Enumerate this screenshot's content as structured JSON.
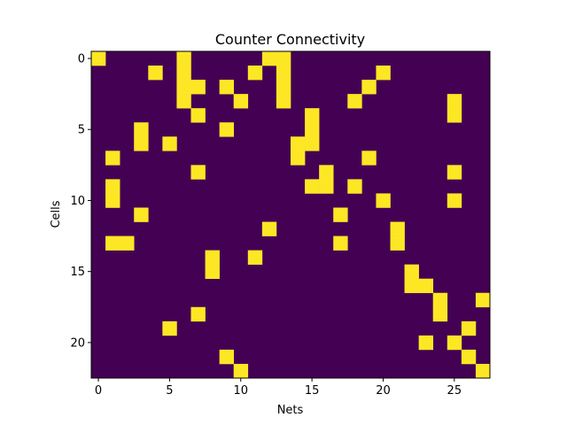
{
  "chart_data": {
    "type": "heatmap",
    "title": "Counter Connectivity",
    "xlabel": "Nets",
    "ylabel": "Cells",
    "n_rows": 23,
    "n_cols": 28,
    "xticks": [
      0,
      5,
      10,
      15,
      20,
      25
    ],
    "yticks": [
      0,
      5,
      10,
      15,
      20
    ],
    "xlim": [
      -0.5,
      27.5
    ],
    "ylim": [
      22.5,
      -0.5
    ],
    "colormap": "viridis",
    "value_range": [
      0,
      1
    ],
    "colors": {
      "off": "#440154",
      "on": "#fde725"
    },
    "grid": false,
    "legend": "none",
    "connections": [
      [
        0,
        0
      ],
      [
        0,
        6
      ],
      [
        0,
        12
      ],
      [
        0,
        13
      ],
      [
        1,
        4
      ],
      [
        1,
        6
      ],
      [
        1,
        11
      ],
      [
        1,
        13
      ],
      [
        1,
        20
      ],
      [
        2,
        6
      ],
      [
        2,
        7
      ],
      [
        2,
        9
      ],
      [
        2,
        13
      ],
      [
        2,
        19
      ],
      [
        3,
        6
      ],
      [
        3,
        10
      ],
      [
        3,
        13
      ],
      [
        3,
        18
      ],
      [
        3,
        25
      ],
      [
        4,
        7
      ],
      [
        4,
        15
      ],
      [
        4,
        25
      ],
      [
        5,
        3
      ],
      [
        5,
        9
      ],
      [
        5,
        15
      ],
      [
        6,
        3
      ],
      [
        6,
        5
      ],
      [
        6,
        14
      ],
      [
        6,
        15
      ],
      [
        7,
        1
      ],
      [
        7,
        14
      ],
      [
        7,
        19
      ],
      [
        8,
        7
      ],
      [
        8,
        16
      ],
      [
        8,
        25
      ],
      [
        9,
        1
      ],
      [
        9,
        15
      ],
      [
        9,
        16
      ],
      [
        9,
        18
      ],
      [
        10,
        1
      ],
      [
        10,
        20
      ],
      [
        10,
        25
      ],
      [
        11,
        3
      ],
      [
        11,
        17
      ],
      [
        12,
        12
      ],
      [
        12,
        21
      ],
      [
        13,
        1
      ],
      [
        13,
        2
      ],
      [
        13,
        17
      ],
      [
        13,
        21
      ],
      [
        14,
        8
      ],
      [
        14,
        11
      ],
      [
        15,
        8
      ],
      [
        15,
        22
      ],
      [
        16,
        22
      ],
      [
        16,
        23
      ],
      [
        17,
        24
      ],
      [
        17,
        27
      ],
      [
        18,
        7
      ],
      [
        18,
        24
      ],
      [
        19,
        5
      ],
      [
        19,
        26
      ],
      [
        20,
        23
      ],
      [
        20,
        25
      ],
      [
        21,
        9
      ],
      [
        21,
        26
      ],
      [
        22,
        10
      ],
      [
        22,
        27
      ]
    ]
  }
}
